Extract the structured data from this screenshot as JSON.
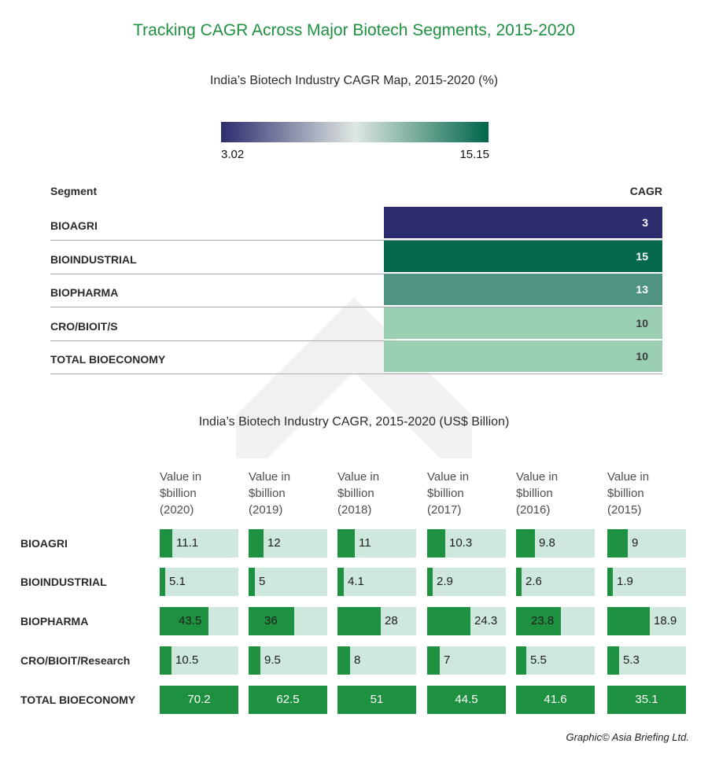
{
  "title": "Tracking CAGR Across Major Biotech Segments, 2015-2020",
  "credit": "Graphic© Asia Briefing Ltd.",
  "colors": {
    "accent": "#1e9141",
    "scale_low": "#2c2c6e",
    "scale_mid": "#dfe7e2",
    "scale_high": "#00664a",
    "value_bar": "#1e9141",
    "value_track": "#cfe8dd"
  },
  "chart_data": [
    {
      "type": "heatmap",
      "title": "India’s Biotech Industry CAGR Map, 2015-2020 (%)",
      "color_scale": {
        "min": 3.02,
        "max": 15.15,
        "min_label": "3.02",
        "max_label": "15.15"
      },
      "columns": [
        "Segment",
        "CAGR"
      ],
      "rows": [
        {
          "segment": "BIOAGRI",
          "cagr": 3
        },
        {
          "segment": "BIOINDUSTRIAL",
          "cagr": 15
        },
        {
          "segment": "BIOPHARMA",
          "cagr": 13
        },
        {
          "segment": "CRO/BIOIT/S",
          "cagr": 10
        },
        {
          "segment": "TOTAL BIOECONOMY",
          "cagr": 10
        }
      ]
    },
    {
      "type": "table",
      "title": "India’s Biotech Industry CAGR, 2015-2020 (US$ Billion)",
      "columns": [
        [
          "Value in",
          "$billion",
          "(2020)"
        ],
        [
          "Value in",
          "$billion",
          "(2019)"
        ],
        [
          "Value in",
          "$billion",
          "(2018)"
        ],
        [
          "Value in",
          "$billion",
          "(2017)"
        ],
        [
          "Value in",
          "$billion",
          "(2016)"
        ],
        [
          "Value in",
          "$billion",
          "(2015)"
        ]
      ],
      "column_max": [
        70.2,
        62.5,
        51,
        44.5,
        41.6,
        35.1
      ],
      "rows": [
        {
          "segment": "BIOAGRI",
          "values": [
            11.1,
            12,
            11,
            10.3,
            9.8,
            9
          ]
        },
        {
          "segment": "BIOINDUSTRIAL",
          "values": [
            5.1,
            5,
            4.1,
            2.9,
            2.6,
            1.9
          ]
        },
        {
          "segment": "BIOPHARMA",
          "values": [
            43.5,
            36,
            28,
            24.3,
            23.8,
            18.9
          ]
        },
        {
          "segment": "CRO/BIOIT/Research",
          "values": [
            10.5,
            9.5,
            8,
            7,
            5.5,
            5.3
          ]
        },
        {
          "segment": "TOTAL BIOECONOMY",
          "values": [
            70.2,
            62.5,
            51,
            44.5,
            41.6,
            35.1
          ]
        }
      ]
    }
  ]
}
